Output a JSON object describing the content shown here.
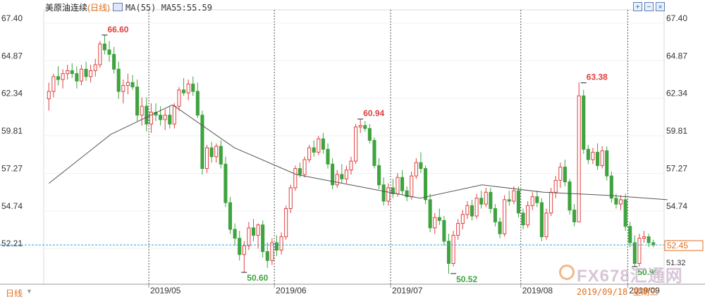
{
  "header": {
    "instrument": "美原油连续",
    "period": "(日线)",
    "ma_label": "MA(55)",
    "ma_value": "MA55:55.59"
  },
  "footer": {
    "period_tab": "日线",
    "date_readout": "2019/09/18 星期三"
  },
  "watermark": "FX678汇通网",
  "toolbar_icons": [
    "zoom-in-icon",
    "zoom-out-icon",
    "close-icon"
  ],
  "colors": {
    "up": "#e04040",
    "down": "#3fa33f",
    "ma": "#555555",
    "price_line": "#2aa3d9",
    "highlight": "#e07020"
  },
  "chart_data": {
    "type": "candlestick",
    "ylim": [
      49.8,
      68.3
    ],
    "yticks": [
      "67.40",
      "64.87",
      "62.34",
      "59.81",
      "57.27",
      "54.74",
      "52.21"
    ],
    "xticks": [
      "2019/05",
      "2019/06",
      "2019/07",
      "2019/08",
      "2019/09"
    ],
    "current_price": 52.45,
    "current_price_label": "52.45",
    "min_axis_label": "51.32",
    "annotations": [
      {
        "label": "66.60",
        "value": 66.6,
        "kind": "high"
      },
      {
        "label": "50.60",
        "value": 50.6,
        "kind": "low"
      },
      {
        "label": "60.94",
        "value": 60.94,
        "kind": "high"
      },
      {
        "label": "50.52",
        "value": 50.52,
        "kind": "low"
      },
      {
        "label": "63.38",
        "value": 63.38,
        "kind": "high"
      },
      {
        "label": "50.99",
        "value": 50.99,
        "kind": "low"
      }
    ],
    "series": [
      {
        "name": "MA55:55.59",
        "type": "line",
        "values": [
          56.6,
          59.9,
          61.9,
          59.0,
          57.2,
          56.4,
          55.6,
          56.5,
          56.0,
          55.8,
          55.5
        ]
      },
      {
        "type": "ohlc",
        "values": [
          [
            62.3,
            63.4,
            61.5,
            62.8
          ],
          [
            62.8,
            64.0,
            62.4,
            63.8
          ],
          [
            63.8,
            64.5,
            63.2,
            63.6
          ],
          [
            63.6,
            64.3,
            63.0,
            64.0
          ],
          [
            64.0,
            64.6,
            63.6,
            64.2
          ],
          [
            64.2,
            64.7,
            63.7,
            64.0
          ],
          [
            64.0,
            64.5,
            63.0,
            63.5
          ],
          [
            63.5,
            64.6,
            63.2,
            64.3
          ],
          [
            64.3,
            64.8,
            63.5,
            63.8
          ],
          [
            63.8,
            64.6,
            63.4,
            64.2
          ],
          [
            64.2,
            65.0,
            63.8,
            64.6
          ],
          [
            64.6,
            66.2,
            64.4,
            66.0
          ],
          [
            66.0,
            66.6,
            65.3,
            65.6
          ],
          [
            65.6,
            66.2,
            64.8,
            65.3
          ],
          [
            65.3,
            65.8,
            64.0,
            64.3
          ],
          [
            64.3,
            64.8,
            62.3,
            62.8
          ],
          [
            62.8,
            63.6,
            62.0,
            63.2
          ],
          [
            63.2,
            64.0,
            62.6,
            63.4
          ],
          [
            63.4,
            63.9,
            62.9,
            63.1
          ],
          [
            63.1,
            63.6,
            60.8,
            61.2
          ],
          [
            61.2,
            62.4,
            60.5,
            61.8
          ],
          [
            61.8,
            62.4,
            60.1,
            60.6
          ],
          [
            60.6,
            62.0,
            60.0,
            61.4
          ],
          [
            61.4,
            62.0,
            60.8,
            61.2
          ],
          [
            61.2,
            61.8,
            60.5,
            60.9
          ],
          [
            60.9,
            61.6,
            60.2,
            61.2
          ],
          [
            61.2,
            61.8,
            60.3,
            60.6
          ],
          [
            60.6,
            62.0,
            60.3,
            61.8
          ],
          [
            61.8,
            63.1,
            61.5,
            62.9
          ],
          [
            62.9,
            63.7,
            62.5,
            62.7
          ],
          [
            62.7,
            63.6,
            62.2,
            63.3
          ],
          [
            63.3,
            63.8,
            62.5,
            62.8
          ],
          [
            62.8,
            63.4,
            61.0,
            61.2
          ],
          [
            61.2,
            61.5,
            57.2,
            57.6
          ],
          [
            57.6,
            59.2,
            57.3,
            59.0
          ],
          [
            59.0,
            59.4,
            58.0,
            58.4
          ],
          [
            58.4,
            59.3,
            58.0,
            59.1
          ],
          [
            59.1,
            59.5,
            57.6,
            57.9
          ],
          [
            57.9,
            58.4,
            55.0,
            55.3
          ],
          [
            55.3,
            55.7,
            53.2,
            53.5
          ],
          [
            53.5,
            53.9,
            52.4,
            52.9
          ],
          [
            52.9,
            53.4,
            51.4,
            51.8
          ],
          [
            51.8,
            52.7,
            50.6,
            52.4
          ],
          [
            52.4,
            54.0,
            52.1,
            53.6
          ],
          [
            53.6,
            54.2,
            52.7,
            53.1
          ],
          [
            53.1,
            53.9,
            52.2,
            53.8
          ],
          [
            53.8,
            54.1,
            51.6,
            52.0
          ],
          [
            52.0,
            52.6,
            50.9,
            51.4
          ],
          [
            51.4,
            52.9,
            51.1,
            52.6
          ],
          [
            52.6,
            53.1,
            51.7,
            52.1
          ],
          [
            52.1,
            53.3,
            51.8,
            53.0
          ],
          [
            53.0,
            55.1,
            52.8,
            54.9
          ],
          [
            54.9,
            56.5,
            54.6,
            56.3
          ],
          [
            56.3,
            57.8,
            56.1,
            57.6
          ],
          [
            57.6,
            58.0,
            57.0,
            57.2
          ],
          [
            57.2,
            58.4,
            57.0,
            58.2
          ],
          [
            58.2,
            59.2,
            58.0,
            59.0
          ],
          [
            59.0,
            59.5,
            58.4,
            58.7
          ],
          [
            58.7,
            59.8,
            58.5,
            59.6
          ],
          [
            59.6,
            60.0,
            58.6,
            58.9
          ],
          [
            58.9,
            59.3,
            57.6,
            57.9
          ],
          [
            57.9,
            58.3,
            56.2,
            56.5
          ],
          [
            56.5,
            57.5,
            56.3,
            57.2
          ],
          [
            57.2,
            57.9,
            56.6,
            56.9
          ],
          [
            56.9,
            57.8,
            56.6,
            57.5
          ],
          [
            57.5,
            58.4,
            57.2,
            58.1
          ],
          [
            58.1,
            60.6,
            57.9,
            60.4
          ],
          [
            60.4,
            60.9,
            60.0,
            60.5
          ],
          [
            60.5,
            60.8,
            60.1,
            60.3
          ],
          [
            60.3,
            60.6,
            59.3,
            59.5
          ],
          [
            59.5,
            59.7,
            57.6,
            57.8
          ],
          [
            57.8,
            58.3,
            56.2,
            56.5
          ],
          [
            56.5,
            57.0,
            55.1,
            55.4
          ],
          [
            55.4,
            56.6,
            55.1,
            56.3
          ],
          [
            56.3,
            56.9,
            55.6,
            55.9
          ],
          [
            55.9,
            57.3,
            55.7,
            57.0
          ],
          [
            57.0,
            57.5,
            55.8,
            56.1
          ],
          [
            56.1,
            56.4,
            55.4,
            55.7
          ],
          [
            55.7,
            57.4,
            55.5,
            57.1
          ],
          [
            57.1,
            58.3,
            56.9,
            58.0
          ],
          [
            58.0,
            58.7,
            57.3,
            57.6
          ],
          [
            57.6,
            57.8,
            55.2,
            55.5
          ],
          [
            55.5,
            55.9,
            53.3,
            53.6
          ],
          [
            53.6,
            54.6,
            53.2,
            54.3
          ],
          [
            54.3,
            54.9,
            53.8,
            54.1
          ],
          [
            54.1,
            54.4,
            52.4,
            52.7
          ],
          [
            52.7,
            53.2,
            50.5,
            51.2
          ],
          [
            51.2,
            53.4,
            51.0,
            53.1
          ],
          [
            53.1,
            54.2,
            52.8,
            53.9
          ],
          [
            53.9,
            54.8,
            53.5,
            54.5
          ],
          [
            54.5,
            55.4,
            54.2,
            55.1
          ],
          [
            55.1,
            55.5,
            54.1,
            54.4
          ],
          [
            54.4,
            55.9,
            54.2,
            55.6
          ],
          [
            55.6,
            56.1,
            54.9,
            55.2
          ],
          [
            55.2,
            56.3,
            55.0,
            56.0
          ],
          [
            56.0,
            56.3,
            54.6,
            54.9
          ],
          [
            54.9,
            55.2,
            53.7,
            54.0
          ],
          [
            54.0,
            54.3,
            52.9,
            53.2
          ],
          [
            53.2,
            55.8,
            53.0,
            55.5
          ],
          [
            55.5,
            56.1,
            55.1,
            55.4
          ],
          [
            55.4,
            56.4,
            55.2,
            56.1
          ],
          [
            56.1,
            56.4,
            54.3,
            54.6
          ],
          [
            54.6,
            54.9,
            53.5,
            53.8
          ],
          [
            53.8,
            55.4,
            53.6,
            55.1
          ],
          [
            55.1,
            56.0,
            54.8,
            55.7
          ],
          [
            55.7,
            56.1,
            55.0,
            55.3
          ],
          [
            55.3,
            55.6,
            52.7,
            53.0
          ],
          [
            53.0,
            54.9,
            52.8,
            54.6
          ],
          [
            54.6,
            56.3,
            54.4,
            56.0
          ],
          [
            56.0,
            57.1,
            55.6,
            56.8
          ],
          [
            56.8,
            58.0,
            56.3,
            57.7
          ],
          [
            57.7,
            58.2,
            56.4,
            56.7
          ],
          [
            56.7,
            56.9,
            54.5,
            54.8
          ],
          [
            54.8,
            55.2,
            53.7,
            54.0
          ],
          [
            54.0,
            63.4,
            58.6,
            62.5
          ],
          [
            62.5,
            62.9,
            58.6,
            58.9
          ],
          [
            58.9,
            59.2,
            57.9,
            58.2
          ],
          [
            58.2,
            59.0,
            57.9,
            58.7
          ],
          [
            58.7,
            59.3,
            57.5,
            57.8
          ],
          [
            57.8,
            59.1,
            57.6,
            58.8
          ],
          [
            58.8,
            59.1,
            56.8,
            57.1
          ],
          [
            57.1,
            57.4,
            55.3,
            55.6
          ],
          [
            55.6,
            55.9,
            54.9,
            55.2
          ],
          [
            55.2,
            55.8,
            54.8,
            55.5
          ],
          [
            55.5,
            55.9,
            53.4,
            53.7
          ],
          [
            53.7,
            54.0,
            52.3,
            52.6
          ],
          [
            52.6,
            53.1,
            51.0,
            51.2
          ],
          [
            51.2,
            53.2,
            51.0,
            52.9
          ],
          [
            52.9,
            53.4,
            52.6,
            53.0
          ],
          [
            53.0,
            53.2,
            52.3,
            52.6
          ],
          [
            52.6,
            52.8,
            52.3,
            52.45
          ]
        ]
      }
    ]
  }
}
